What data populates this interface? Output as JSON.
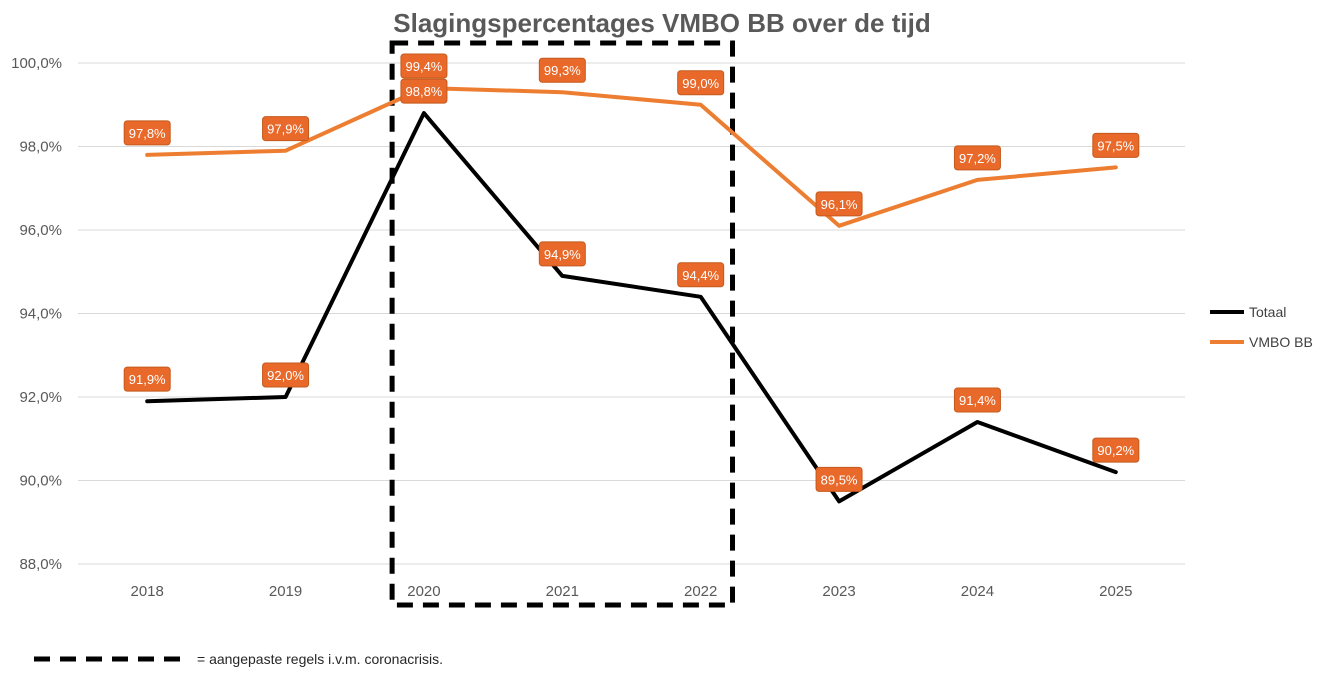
{
  "chart_data": {
    "type": "line",
    "title": "Slagingspercentages VMBO BB over de tijd",
    "xlabel": "",
    "ylabel": "",
    "categories": [
      "2018",
      "2019",
      "2020",
      "2021",
      "2022",
      "2023",
      "2024",
      "2025"
    ],
    "ylim": [
      88.0,
      100.0
    ],
    "yticks": [
      "88,0%",
      "90,0%",
      "92,0%",
      "94,0%",
      "96,0%",
      "98,0%",
      "100,0%"
    ],
    "grid": true,
    "legend_position": "right",
    "series": [
      {
        "name": "Totaal",
        "color": "#000000",
        "values": [
          91.9,
          92.0,
          98.8,
          94.9,
          94.4,
          89.5,
          91.4,
          90.2
        ],
        "labels": [
          "91,9%",
          "92,0%",
          "98,8%",
          "94,9%",
          "94,4%",
          "89,5%",
          "91,4%",
          "90,2%"
        ]
      },
      {
        "name": "VMBO BB",
        "color": "#ED7D31",
        "values": [
          97.8,
          97.9,
          99.4,
          99.3,
          99.0,
          96.1,
          97.2,
          97.5
        ],
        "labels": [
          "97,8%",
          "97,9%",
          "99,4%",
          "99,3%",
          "99,0%",
          "96,1%",
          "97,2%",
          "97,5%"
        ]
      }
    ],
    "highlight": {
      "from": "2020",
      "to": "2022",
      "style": "dashed-box"
    },
    "annotation": "= aangepaste regels i.v.m. coronacrisis.",
    "label_bg_color": "#E8692A",
    "gridline_color": "#D9D9D9"
  }
}
